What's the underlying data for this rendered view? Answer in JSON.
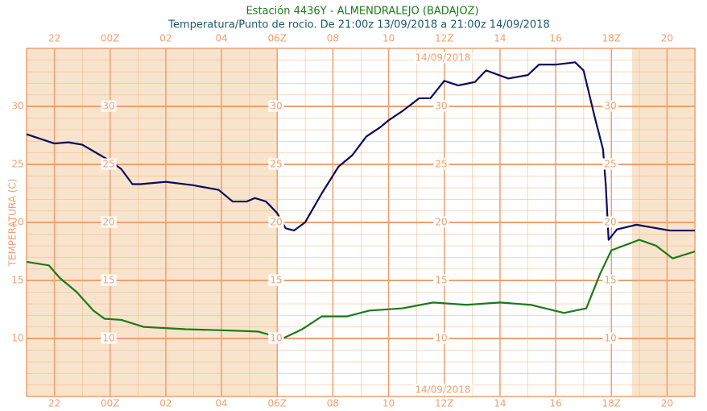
{
  "chart_data": {
    "type": "line",
    "title": "Estación 4436Y - ALMENDRALEJO (BADAJOZ)",
    "subtitle": "Temperatura/Punto de rocio. De 21:00z 13/09/2018 a 21:00z 14/09/2018",
    "y_label": "TEMPERATURA (C)",
    "date_label": "14/09/2018",
    "xlim": [
      0,
      24
    ],
    "xticks": [
      {
        "value": 1,
        "label": "22"
      },
      {
        "value": 3,
        "label": "00Z"
      },
      {
        "value": 5,
        "label": "02"
      },
      {
        "value": 7,
        "label": "04"
      },
      {
        "value": 9,
        "label": "06Z"
      },
      {
        "value": 11,
        "label": "08"
      },
      {
        "value": 13,
        "label": "10"
      },
      {
        "value": 15,
        "label": "12Z"
      },
      {
        "value": 17,
        "label": "14"
      },
      {
        "value": 19,
        "label": "16"
      },
      {
        "value": 21,
        "label": "18Z"
      },
      {
        "value": 23,
        "label": "20"
      }
    ],
    "ylim": [
      5,
      35
    ],
    "yticks": [
      10,
      15,
      20,
      25,
      30
    ],
    "grid": true,
    "series": [
      {
        "color": "#0a0a5a",
        "x": [
          0,
          1,
          1.5,
          2,
          3,
          3.4,
          3.8,
          4.1,
          5,
          6,
          6.9,
          7.4,
          7.9,
          8.2,
          8.6,
          9,
          9.3,
          9.6,
          10,
          10.6,
          11.2,
          11.7,
          12.2,
          12.7,
          13,
          13.5,
          14.1,
          14.5,
          15,
          15.5,
          16.1,
          16.5,
          17.3,
          18,
          18.4,
          19,
          19.7,
          20,
          20.4,
          20.7,
          20.8,
          20.9,
          21.2,
          21.9,
          23.1,
          24
        ],
        "values": [
          27.6,
          26.8,
          26.9,
          26.7,
          25.3,
          24.6,
          23.3,
          23.3,
          23.5,
          23.2,
          22.8,
          21.8,
          21.8,
          22.1,
          21.8,
          20.8,
          19.5,
          19.3,
          20.0,
          22.5,
          24.8,
          25.8,
          27.4,
          28.2,
          28.8,
          29.6,
          30.7,
          30.7,
          32.2,
          31.8,
          32.1,
          33.1,
          32.4,
          32.7,
          33.6,
          33.6,
          33.8,
          33.1,
          29.1,
          26.3,
          23.2,
          18.5,
          19.4,
          19.8,
          19.3,
          19.3
        ]
      },
      {
        "color": "#1a7a1a",
        "x": [
          0,
          0.8,
          1.2,
          1.8,
          2.4,
          2.8,
          3.4,
          4.2,
          5.7,
          7.1,
          8.3,
          9.2,
          9.9,
          10.6,
          11.5,
          12.3,
          13.5,
          14.6,
          15.8,
          17,
          18.1,
          19.3,
          20.1,
          20.6,
          21,
          22,
          22.6,
          23.2,
          24
        ],
        "values": [
          16.6,
          16.3,
          15.2,
          14.0,
          12.4,
          11.7,
          11.6,
          11.0,
          10.8,
          10.7,
          10.6,
          10.0,
          10.8,
          11.9,
          11.9,
          12.4,
          12.6,
          13.1,
          12.9,
          13.1,
          12.9,
          12.2,
          12.6,
          15.6,
          17.6,
          18.5,
          18.0,
          16.9,
          17.5
        ]
      }
    ]
  }
}
